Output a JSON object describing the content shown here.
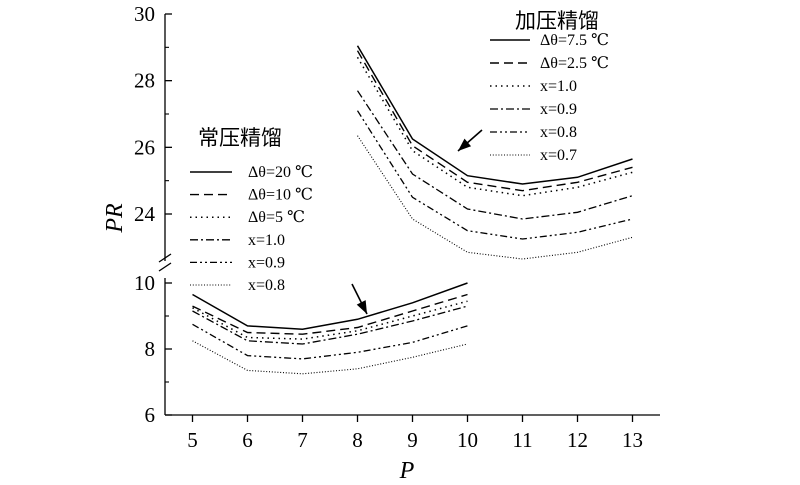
{
  "chart_data": {
    "type": "line",
    "xlabel": "P",
    "ylabel": "PR",
    "x_ticks": [
      5,
      6,
      7,
      8,
      9,
      10,
      11,
      12,
      13
    ],
    "y_ticks": [
      6,
      8,
      10,
      24,
      26,
      28,
      30
    ],
    "y_axis_break": true,
    "lower_ylim": [
      6,
      10
    ],
    "upper_ylim": [
      23,
      30
    ],
    "xlim": [
      4.5,
      13.5
    ],
    "groups": [
      {
        "title": "常压精馏",
        "panel": "lower",
        "legend_placement": "middle-left",
        "x": [
          5,
          6,
          7,
          8,
          9,
          10
        ],
        "series": [
          {
            "name": "Δθ=20 ℃",
            "dash": "solid",
            "values": [
              9.65,
              8.7,
              8.6,
              8.9,
              9.4,
              10.0
            ]
          },
          {
            "name": "Δθ=10 ℃",
            "dash": "dashed",
            "values": [
              9.3,
              8.5,
              8.45,
              8.65,
              9.15,
              9.65
            ]
          },
          {
            "name": "Δθ=5 ℃",
            "dash": "dotted",
            "values": [
              9.25,
              8.35,
              8.3,
              8.55,
              9.0,
              9.45
            ]
          },
          {
            "name": "x=1.0",
            "dash": "dashdot",
            "values": [
              9.15,
              8.25,
              8.15,
              8.45,
              8.85,
              9.3
            ]
          },
          {
            "name": "x=0.9",
            "dash": "dashdotdot",
            "values": [
              8.75,
              7.8,
              7.7,
              7.9,
              8.2,
              8.7
            ]
          },
          {
            "name": "x=0.8",
            "dash": "fine-dotted",
            "values": [
              8.25,
              7.35,
              7.25,
              7.4,
              7.75,
              8.15
            ]
          }
        ]
      },
      {
        "title": "加压精馏",
        "panel": "upper",
        "legend_placement": "top-right",
        "x": [
          8,
          9,
          10,
          11,
          12,
          13
        ],
        "series": [
          {
            "name": "Δθ=7.5 ℃",
            "dash": "solid",
            "values": [
              29.05,
              26.25,
              25.15,
              24.9,
              25.1,
              25.65
            ]
          },
          {
            "name": "Δθ=2.5 ℃",
            "dash": "dashed",
            "values": [
              28.9,
              26.05,
              24.95,
              24.7,
              24.95,
              25.4
            ]
          },
          {
            "name": "x=1.0",
            "dash": "dotted",
            "values": [
              28.7,
              25.9,
              24.8,
              24.55,
              24.8,
              25.25
            ]
          },
          {
            "name": "x=0.9",
            "dash": "dashdot",
            "values": [
              27.7,
              25.2,
              24.15,
              23.85,
              24.05,
              24.55
            ]
          },
          {
            "name": "x=0.8",
            "dash": "dashdotdot",
            "values": [
              27.1,
              24.5,
              23.5,
              23.25,
              23.45,
              23.85
            ]
          },
          {
            "name": "x=0.7",
            "dash": "fine-dotted",
            "values": [
              26.35,
              23.85,
              22.85,
              22.65,
              22.85,
              23.3
            ]
          }
        ]
      }
    ],
    "annotations": [
      {
        "type": "arrow",
        "points_to_group": "加压精馏"
      },
      {
        "type": "arrow",
        "points_to_group": "常压精馏"
      }
    ]
  }
}
